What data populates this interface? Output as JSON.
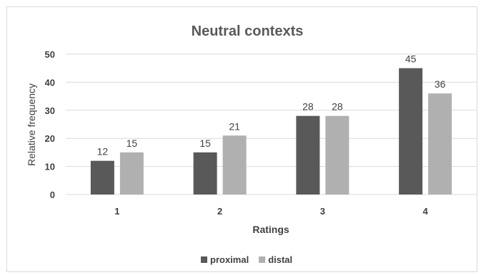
{
  "chart_data": {
    "type": "bar",
    "title": "Neutral contexts",
    "xlabel": "Ratings",
    "ylabel": "Relative frequency",
    "categories": [
      "1",
      "2",
      "3",
      "4"
    ],
    "series": [
      {
        "name": "proximal",
        "values": [
          12,
          15,
          28,
          45
        ],
        "color": "#595959"
      },
      {
        "name": "distal",
        "values": [
          15,
          21,
          28,
          36
        ],
        "color": "#b0b0b0"
      }
    ],
    "ylim": [
      0,
      50
    ],
    "yticks": [
      "0",
      "10",
      "20",
      "30",
      "40",
      "50"
    ],
    "grid": true,
    "legend": "bottom"
  }
}
